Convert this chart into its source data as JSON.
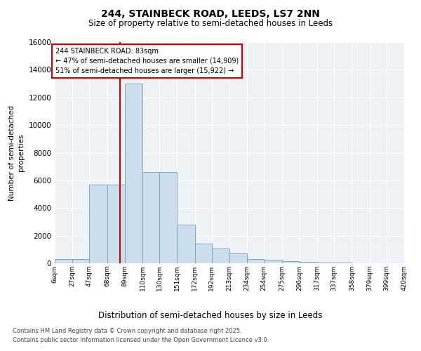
{
  "title1": "244, STAINBECK ROAD, LEEDS, LS7 2NN",
  "title2": "Size of property relative to semi-detached houses in Leeds",
  "xlabel": "Distribution of semi-detached houses by size in Leeds",
  "ylabel": "Number of semi-detached\nproperties",
  "bar_color": "#ccdded",
  "bar_edge_color": "#7aaabf",
  "annotation_line_color": "#cc0000",
  "annotation_box_color": "#cc0000",
  "annotation_text": "244 STAINBECK ROAD: 83sqm\n← 47% of semi-detached houses are smaller (14,909)\n51% of semi-detached houses are larger (15,922) →",
  "property_size_sqm": 83,
  "bin_edges": [
    6,
    27,
    47,
    68,
    89,
    110,
    130,
    151,
    172,
    192,
    213,
    234,
    254,
    275,
    296,
    317,
    337,
    358,
    379,
    399,
    420
  ],
  "bin_labels": [
    "6sqm",
    "27sqm",
    "47sqm",
    "68sqm",
    "89sqm",
    "110sqm",
    "130sqm",
    "151sqm",
    "172sqm",
    "192sqm",
    "213sqm",
    "234sqm",
    "254sqm",
    "275sqm",
    "296sqm",
    "317sqm",
    "337sqm",
    "358sqm",
    "379sqm",
    "399sqm",
    "420sqm"
  ],
  "values": [
    300,
    300,
    5700,
    5700,
    13000,
    6600,
    6600,
    2800,
    1400,
    1050,
    700,
    300,
    250,
    150,
    100,
    50,
    30,
    20,
    10,
    5
  ],
  "ylim": [
    0,
    16000
  ],
  "yticks": [
    0,
    2000,
    4000,
    6000,
    8000,
    10000,
    12000,
    14000,
    16000
  ],
  "footer": "Contains HM Land Registry data © Crown copyright and database right 2025.\nContains public sector information licensed under the Open Government Licence v3.0.",
  "plot_bg_color": "#eef2f7",
  "grid_color": "#ffffff",
  "title1_fontsize": 10,
  "title2_fontsize": 8.5
}
